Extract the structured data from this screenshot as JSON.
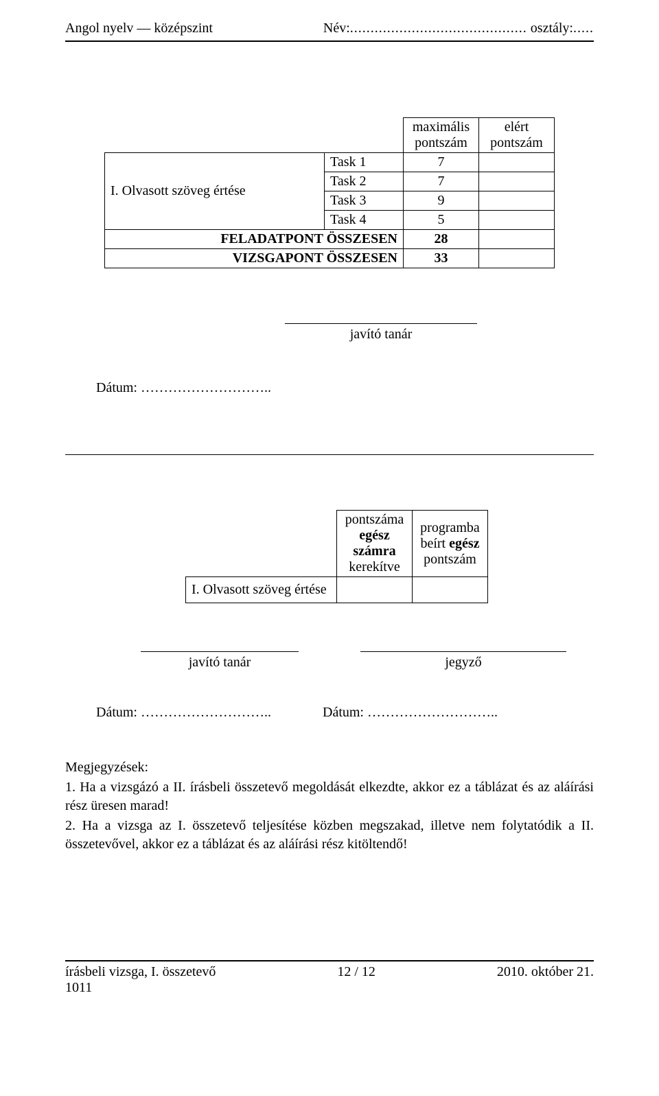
{
  "header": {
    "left": "Angol nyelv — középszint",
    "name_label": "Név:",
    "name_dots": "...........................................",
    "class_label": " osztály:",
    "class_dots": "....."
  },
  "table1": {
    "col_max": "maximális pontszám",
    "col_got": "elért pontszám",
    "row_label": "I. Olvasott szöveg értése",
    "tasks": [
      {
        "name": "Task 1",
        "max": "7"
      },
      {
        "name": "Task 2",
        "max": "7"
      },
      {
        "name": "Task 3",
        "max": "9"
      },
      {
        "name": "Task 4",
        "max": "5"
      }
    ],
    "sum1": {
      "label": "FELADATPONT ÖSSZESEN",
      "val": "28"
    },
    "sum2": {
      "label": "VIZSGAPONT ÖSSZESEN",
      "val": "33"
    }
  },
  "sig1": {
    "label": "javító tanár"
  },
  "date": {
    "label": "Dátum:",
    "dots": " ……………………….."
  },
  "table2": {
    "col_a_l1": "pontszáma",
    "col_a_l2": "egész",
    "col_a_l3": "számra",
    "col_a_l4": "kerekítve",
    "col_b_l1": "programba",
    "col_b_l2": "beírt egész",
    "col_b_l3": "pontszám",
    "row_label": "I. Olvasott szöveg értése"
  },
  "sig2": {
    "a": "javító tanár",
    "b": "jegyző"
  },
  "notes": {
    "title": "Megjegyzések:",
    "p1": "1. Ha a vizsgázó a II. írásbeli összetevő megoldását elkezdte, akkor ez a táblázat és az aláírási rész üresen marad!",
    "p2": "2. Ha a vizsga az I. összetevő teljesítése közben megszakad, illetve nem folytatódik a II. összetevővel, akkor ez a táblázat és az aláírási rész kitöltendő!"
  },
  "footer": {
    "left_l1": "írásbeli vizsga, I. összetevő",
    "left_l2": "1011",
    "center": "12 / 12",
    "right": "2010. október 21."
  }
}
